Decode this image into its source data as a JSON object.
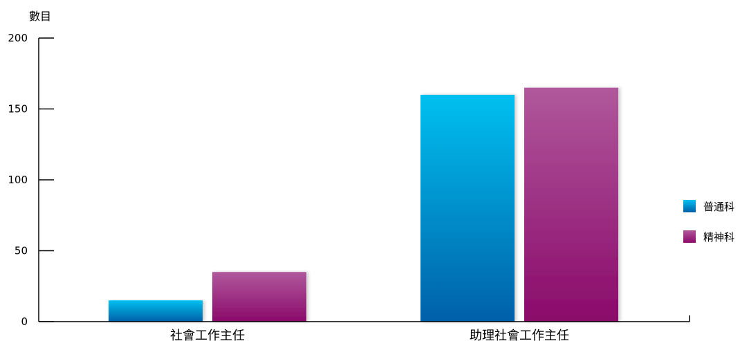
{
  "chart_data": {
    "type": "bar",
    "title": "",
    "ylabel": "數目",
    "xlabel": "",
    "ylim": [
      0,
      200
    ],
    "yticks": [
      0,
      50,
      100,
      150,
      200
    ],
    "categories": [
      "社會工作主任",
      "助理社會工作主任"
    ],
    "series": [
      {
        "name": "普通科",
        "values": [
          15,
          160
        ]
      },
      {
        "name": "精神科",
        "values": [
          35,
          165
        ]
      }
    ],
    "grid": false,
    "legend_position": "right"
  },
  "colors": {
    "series": [
      {
        "top": "#00c0f0",
        "bottom": "#0060a8"
      },
      {
        "top": "#b0589c",
        "bottom": "#8a0a6a"
      }
    ],
    "axis": "#000000"
  }
}
